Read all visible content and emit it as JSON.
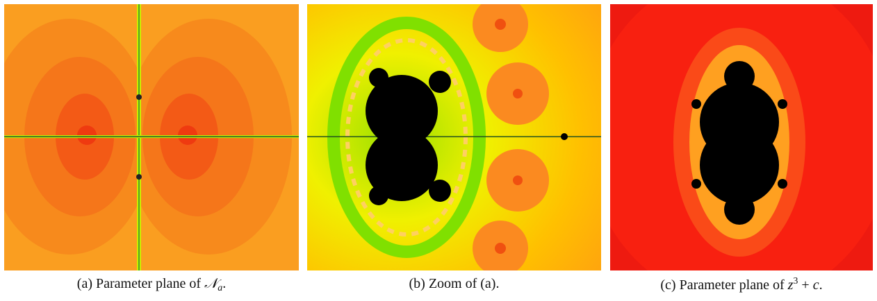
{
  "figures": [
    {
      "caption": [
        {
          "text": "(a) Parameter plane of "
        },
        {
          "text": "𝒩",
          "style": "math"
        },
        {
          "text": "a",
          "style": "sub"
        },
        {
          "text": "."
        }
      ]
    },
    {
      "caption": [
        {
          "text": "(b) Zoom of (a)."
        }
      ]
    },
    {
      "caption": [
        {
          "text": "(c) Parameter plane of "
        },
        {
          "text": "z",
          "style": "math"
        },
        {
          "text": "3",
          "style": "sup"
        },
        {
          "text": " + "
        },
        {
          "text": "c",
          "style": "math"
        },
        {
          "text": "."
        }
      ]
    }
  ]
}
